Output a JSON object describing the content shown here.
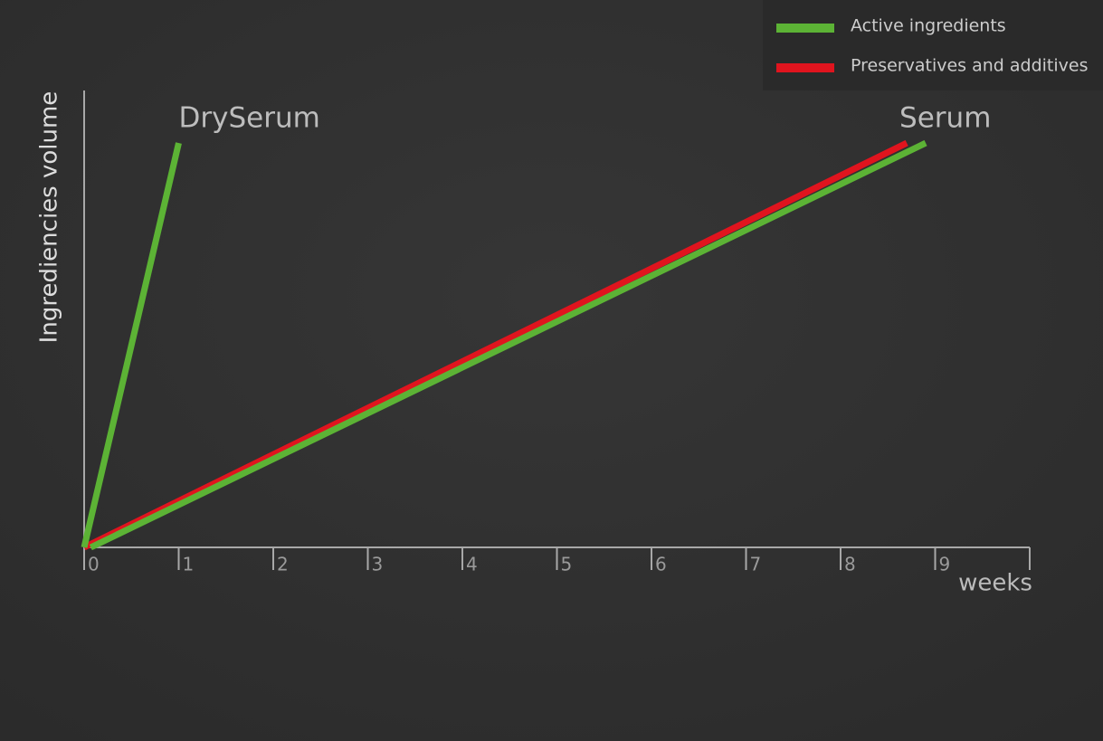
{
  "chart_data": {
    "type": "line",
    "xlabel": "weeks",
    "ylabel": "Ingrediencies volume",
    "xlim": [
      0,
      10
    ],
    "ylim": [
      0,
      100
    ],
    "xticks": [
      0,
      1,
      2,
      3,
      4,
      5,
      6,
      7,
      8,
      9
    ],
    "legend_position": "upper right",
    "annotations": [
      "DrySerum",
      "Serum"
    ],
    "series": [
      {
        "name": "Preservatives and additives",
        "color": "#e0141e",
        "lines": [
          {
            "x": [
              0,
              8.7
            ],
            "values": [
              0,
              88.5
            ]
          }
        ]
      },
      {
        "name": "Active ingredients",
        "color": "#5cb335",
        "lines": [
          {
            "x": [
              0,
              1
            ],
            "values": [
              0,
              88.5
            ]
          },
          {
            "x": [
              0.07,
              8.9
            ],
            "values": [
              0,
              88.5
            ]
          }
        ]
      }
    ]
  }
}
